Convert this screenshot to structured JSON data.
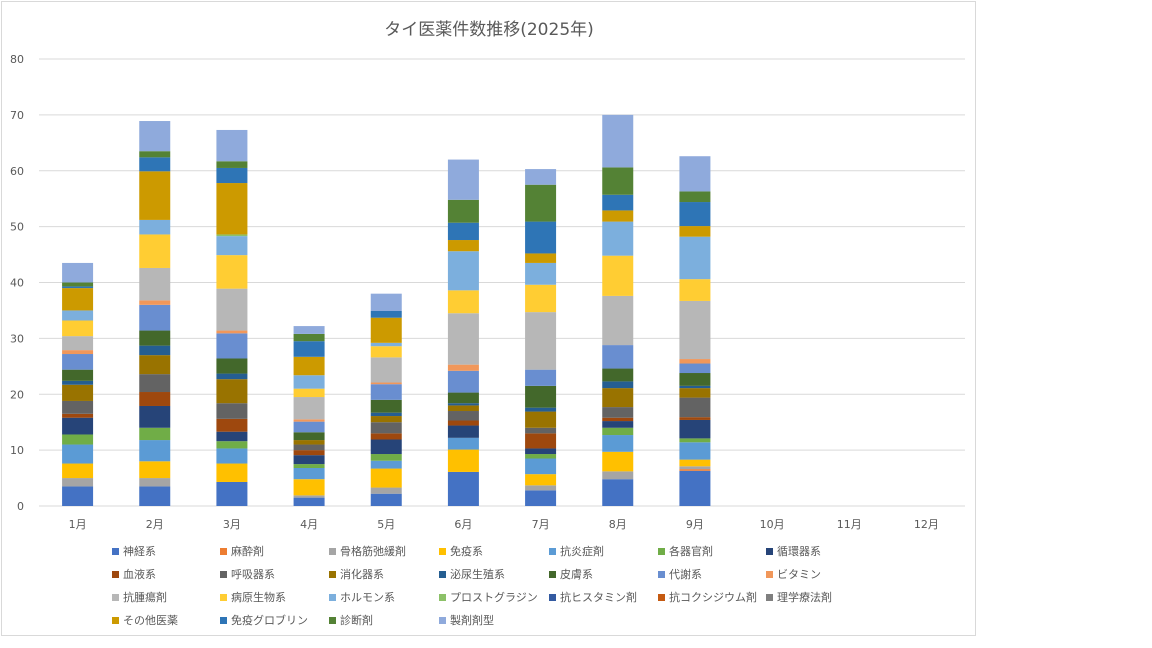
{
  "chart_data": {
    "type": "bar",
    "stacked": true,
    "title": "タイ医薬件数推移(2025年)",
    "xlabel": "",
    "ylabel": "",
    "ylim": [
      0,
      80
    ],
    "yticks": [
      0,
      10,
      20,
      30,
      40,
      50,
      60,
      70,
      80
    ],
    "grid": true,
    "legend_position": "bottom",
    "categories": [
      "1月",
      "2月",
      "3月",
      "4月",
      "5月",
      "6月",
      "7月",
      "8月",
      "9月",
      "10月",
      "11月",
      "12月"
    ],
    "series": [
      {
        "name": "神経系",
        "color": "#4472C4",
        "values": [
          3.5,
          3.5,
          4.3,
          1.5,
          2.2,
          6.1,
          2.8,
          4.8,
          6.3,
          0,
          0,
          0
        ]
      },
      {
        "name": "麻酔剤",
        "color": "#ED7D31",
        "values": [
          0,
          0,
          0,
          0,
          0,
          0,
          0,
          0,
          0.3,
          0,
          0,
          0
        ]
      },
      {
        "name": "骨格筋弛緩剤",
        "color": "#A5A5A5",
        "values": [
          1.5,
          1.5,
          0,
          0.4,
          1.1,
          0,
          0.9,
          1.4,
          0.5,
          0,
          0,
          0
        ]
      },
      {
        "name": "免疫系",
        "color": "#FFC000",
        "values": [
          2.6,
          3.0,
          3.3,
          2.9,
          3.4,
          4.0,
          2.0,
          3.5,
          1.2,
          0,
          0,
          0
        ]
      },
      {
        "name": "抗炎症剤",
        "color": "#5B9BD5",
        "values": [
          3.4,
          3.8,
          2.7,
          2.0,
          1.4,
          2.1,
          2.8,
          3.0,
          3.1,
          0,
          0,
          0
        ]
      },
      {
        "name": "各器官剤",
        "color": "#70AD47",
        "values": [
          1.8,
          2.2,
          1.3,
          0.7,
          1.2,
          0,
          0.8,
          1.3,
          0.7,
          0,
          0,
          0
        ]
      },
      {
        "name": "循環器系",
        "color": "#264478",
        "values": [
          3.0,
          3.9,
          1.7,
          1.6,
          2.6,
          2.2,
          1.0,
          1.2,
          3.3,
          0,
          0,
          0
        ]
      },
      {
        "name": "血液系",
        "color": "#9E480E",
        "values": [
          0.7,
          2.5,
          2.3,
          0.9,
          1.1,
          0.9,
          2.7,
          0.6,
          0.5,
          0,
          0,
          0
        ]
      },
      {
        "name": "呼吸器系",
        "color": "#636363",
        "values": [
          2.3,
          3.2,
          2.8,
          1.0,
          2.0,
          1.7,
          1.0,
          1.9,
          3.5,
          0,
          0,
          0
        ]
      },
      {
        "name": "消化器系",
        "color": "#997300",
        "values": [
          2.9,
          3.4,
          4.3,
          0.8,
          1.1,
          1.0,
          2.9,
          3.4,
          1.7,
          0,
          0,
          0
        ]
      },
      {
        "name": "泌尿生殖系",
        "color": "#255E91",
        "values": [
          0.7,
          1.7,
          1.0,
          0,
          0.6,
          0.4,
          0.7,
          1.2,
          0.4,
          0,
          0,
          0
        ]
      },
      {
        "name": "皮膚系",
        "color": "#43682B",
        "values": [
          2.0,
          2.7,
          2.7,
          1.4,
          2.3,
          1.9,
          3.9,
          2.3,
          2.3,
          0,
          0,
          0
        ]
      },
      {
        "name": "代謝系",
        "color": "#698ED0",
        "values": [
          2.8,
          4.6,
          4.5,
          1.9,
          2.8,
          3.9,
          2.9,
          4.2,
          1.7,
          0,
          0,
          0
        ]
      },
      {
        "name": "ビタミン",
        "color": "#F1975A",
        "values": [
          0.7,
          0.8,
          0.5,
          0.4,
          0.3,
          1.1,
          0,
          0,
          0.8,
          0,
          0,
          0
        ]
      },
      {
        "name": "抗腫瘍剤",
        "color": "#B7B7B7",
        "values": [
          2.5,
          5.8,
          7.5,
          4.0,
          4.5,
          9.2,
          10.3,
          8.8,
          10.4,
          0,
          0,
          0
        ]
      },
      {
        "name": "病原生物系",
        "color": "#FFCD33",
        "values": [
          2.8,
          6.0,
          6.0,
          1.5,
          2.0,
          4.1,
          4.9,
          7.2,
          3.9,
          0,
          0,
          0
        ]
      },
      {
        "name": "ホルモン系",
        "color": "#7CAFDD",
        "values": [
          1.8,
          2.6,
          3.4,
          2.4,
          0.6,
          7.0,
          3.9,
          6.1,
          7.6,
          0,
          0,
          0
        ]
      },
      {
        "name": "プロストグラジン",
        "color": "#8CC168",
        "values": [
          0,
          0,
          0.3,
          0,
          0,
          0,
          0,
          0,
          0,
          0,
          0,
          0
        ]
      },
      {
        "name": "抗ヒスタミン剤",
        "color": "#335AA1",
        "values": [
          0,
          0,
          0,
          0,
          0,
          0,
          0,
          0,
          0,
          0,
          0,
          0
        ]
      },
      {
        "name": "抗コクシジウム剤",
        "color": "#C55A11",
        "values": [
          0,
          0,
          0,
          0,
          0,
          0,
          0,
          0,
          0,
          0,
          0,
          0
        ]
      },
      {
        "name": "理学療法剤",
        "color": "#7F7F7F",
        "values": [
          0,
          0,
          0,
          0,
          0,
          0,
          0,
          0,
          0,
          0,
          0,
          0
        ]
      },
      {
        "name": "その他医薬",
        "color": "#CC9A00",
        "values": [
          4.0,
          8.7,
          9.2,
          3.3,
          4.5,
          2.0,
          1.7,
          2.0,
          1.9,
          0,
          0,
          0
        ]
      },
      {
        "name": "免疫グロブリン",
        "color": "#2E75B6",
        "values": [
          0.3,
          2.5,
          2.7,
          2.8,
          1.2,
          3.1,
          5.7,
          2.8,
          4.3,
          0,
          0,
          0
        ]
      },
      {
        "name": "診断剤",
        "color": "#548235",
        "values": [
          0.7,
          1.1,
          1.2,
          1.3,
          0,
          4.1,
          6.6,
          4.9,
          1.9,
          0,
          0,
          0
        ]
      },
      {
        "name": "製剤剤型",
        "color": "#8FAADC",
        "values": [
          3.5,
          5.4,
          5.6,
          1.4,
          3.1,
          7.2,
          2.8,
          9.4,
          6.3,
          0,
          0,
          0
        ]
      }
    ]
  }
}
